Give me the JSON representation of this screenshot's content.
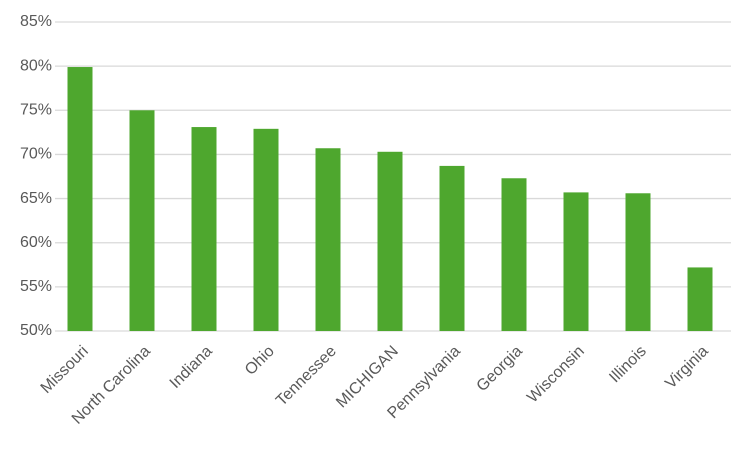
{
  "chart_data": {
    "type": "bar",
    "categories": [
      "Missouri",
      "North Carolina",
      "Indiana",
      "Ohio",
      "Tennessee",
      "MICHIGAN",
      "Pennsylvania",
      "Georgia",
      "Wisconsin",
      "Illinois",
      "Virginia"
    ],
    "values": [
      79.9,
      75.0,
      73.1,
      72.9,
      70.7,
      70.3,
      68.7,
      67.3,
      65.7,
      65.6,
      57.2
    ],
    "color": "#4ea72e",
    "ylim": [
      50,
      85
    ],
    "yticks": [
      {
        "value": 50,
        "label": "50%"
      },
      {
        "value": 55,
        "label": "55%"
      },
      {
        "value": 60,
        "label": "60%"
      },
      {
        "value": 65,
        "label": "65%"
      },
      {
        "value": 70,
        "label": "70%"
      },
      {
        "value": 75,
        "label": "75%"
      },
      {
        "value": 80,
        "label": "80%"
      },
      {
        "value": 85,
        "label": "85%"
      }
    ],
    "grid": true
  }
}
